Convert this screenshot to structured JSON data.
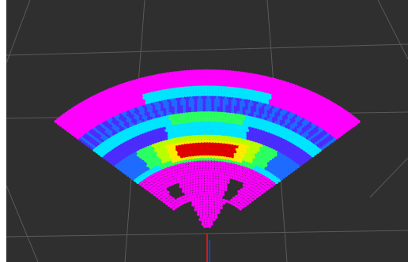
{
  "viewport": {
    "background_color": "#2f2f2f",
    "grid_color": "#5a5a5a",
    "axis_colors": {
      "x": "#cc1d1d",
      "y": "#1d3bcc"
    }
  },
  "point_cloud": {
    "colormap": [
      "#ff00ff",
      "#4b2cff",
      "#1e6cff",
      "#00e5ff",
      "#2cff60",
      "#b8ff00",
      "#ffea00",
      "#ff6a00",
      "#e00000"
    ],
    "near_fill_color": "#ff00ff",
    "hot_spot_color": "#d90000"
  }
}
